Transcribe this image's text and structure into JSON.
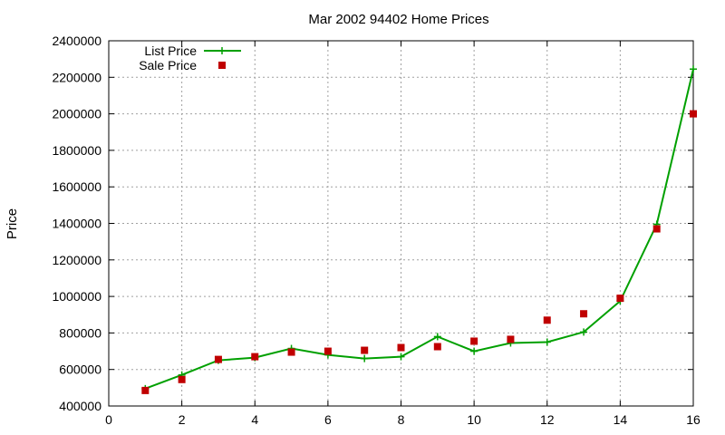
{
  "chart_data": {
    "type": "line",
    "title": "Mar 2002 94402 Home Prices",
    "xlabel": "",
    "ylabel": "Price",
    "xlim": [
      0,
      16
    ],
    "ylim": [
      400000,
      2400000
    ],
    "xticks": [
      "0",
      "2",
      "4",
      "6",
      "8",
      "10",
      "12",
      "14",
      "16"
    ],
    "yticks": [
      "400000",
      "600000",
      "800000",
      "1000000",
      "1200000",
      "1400000",
      "1600000",
      "1800000",
      "2000000",
      "2200000",
      "2400000"
    ],
    "grid": true,
    "legend_position": "top-left",
    "x": [
      1,
      2,
      3,
      4,
      5,
      6,
      7,
      8,
      9,
      10,
      11,
      12,
      13,
      14,
      15,
      16
    ],
    "series": [
      {
        "name": "List Price",
        "style": "line-plus-markers",
        "color": "#00a000",
        "values": [
          495000,
          570000,
          650000,
          665000,
          715000,
          680000,
          660000,
          670000,
          780000,
          700000,
          745000,
          750000,
          805000,
          975000,
          1395000,
          2245000
        ]
      },
      {
        "name": "Sale Price",
        "style": "square-markers",
        "color": "#c00000",
        "values": [
          485000,
          545000,
          655000,
          670000,
          695000,
          700000,
          705000,
          720000,
          725000,
          755000,
          765000,
          870000,
          905000,
          990000,
          1370000,
          2000000
        ]
      }
    ]
  }
}
